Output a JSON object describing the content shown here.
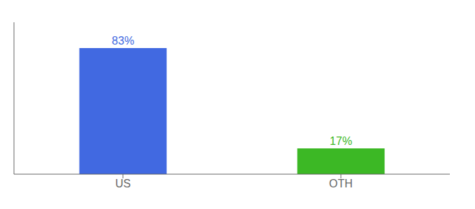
{
  "chart_data": {
    "type": "bar",
    "categories": [
      "US",
      "OTH"
    ],
    "values": [
      83,
      17
    ],
    "colors": [
      "#4169e1",
      "#3cb825"
    ],
    "value_labels": [
      "83%",
      "17%"
    ],
    "data_labels": true,
    "ylim": [
      0,
      100
    ],
    "tick_labels": "x",
    "grid": false
  }
}
